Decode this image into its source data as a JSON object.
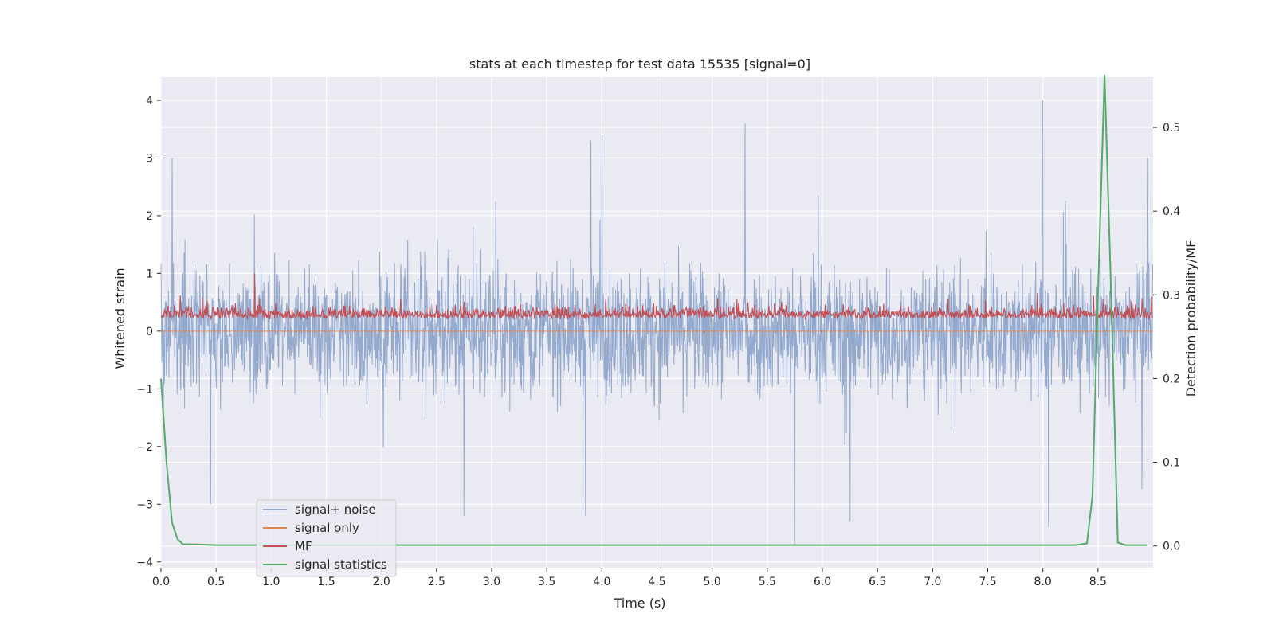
{
  "chart_data": {
    "type": "line",
    "title": "stats at each timestep for test data 15535 [signal=0]",
    "xlabel": "Time (s)",
    "ylabel": "Whitened strain",
    "y2label": "Detection probability/MF",
    "xlim": [
      0.0,
      9.0
    ],
    "ylim": [
      -4.1,
      4.4
    ],
    "y2lim": [
      -0.026,
      0.56
    ],
    "x_ticks": [
      0.0,
      0.5,
      1.0,
      1.5,
      2.0,
      2.5,
      3.0,
      3.5,
      4.0,
      4.5,
      5.0,
      5.5,
      6.0,
      6.5,
      7.0,
      7.5,
      8.0,
      8.5
    ],
    "x_tick_labels": [
      "0.0",
      "0.5",
      "1.0",
      "1.5",
      "2.0",
      "2.5",
      "3.0",
      "3.5",
      "4.0",
      "4.5",
      "5.0",
      "5.5",
      "6.0",
      "6.5",
      "7.0",
      "7.5",
      "8.0",
      "8.5"
    ],
    "y_ticks": [
      4,
      3,
      2,
      1,
      0,
      -1,
      -2,
      -3,
      -4
    ],
    "y_tick_labels": [
      "4",
      "3",
      "2",
      "1",
      "0",
      "−1",
      "−2",
      "−3",
      "−4"
    ],
    "y2_ticks": [
      0.5,
      0.4,
      0.3,
      0.2,
      0.1,
      0.0
    ],
    "y2_tick_labels": [
      "0.5",
      "0.4",
      "0.3",
      "0.2",
      "0.1",
      "0.0"
    ],
    "grid": true,
    "legend_position": "lower-left",
    "series": [
      {
        "name": "signal+ noise",
        "axis": "left",
        "color": "#4c72b0",
        "style": "dense-noise",
        "approx_range": [
          -3.7,
          4.0
        ],
        "notable_peaks": [
          [
            0.1,
            3.0
          ],
          [
            3.9,
            3.3
          ],
          [
            4.0,
            3.4
          ],
          [
            5.3,
            3.6
          ],
          [
            8.0,
            4.0
          ],
          [
            8.95,
            3.0
          ]
        ],
        "notable_troughs": [
          [
            0.45,
            -3.0
          ],
          [
            2.75,
            -3.2
          ],
          [
            3.85,
            -3.2
          ],
          [
            5.75,
            -3.7
          ],
          [
            6.25,
            -3.3
          ],
          [
            8.05,
            -3.4
          ]
        ]
      },
      {
        "name": "signal only",
        "axis": "left",
        "color": "#dd8452",
        "value": 0.0
      },
      {
        "name": "MF",
        "axis": "left",
        "color": "#c44e52",
        "style": "dense-positive-noise",
        "approx_range": [
          0.0,
          1.0
        ],
        "baseline": 0.25
      },
      {
        "name": "signal statistics",
        "axis": "right",
        "color": "#55a868",
        "x": [
          0.0,
          0.05,
          0.1,
          0.15,
          0.2,
          0.3,
          0.5,
          1.0,
          2.0,
          3.0,
          4.0,
          5.0,
          6.0,
          7.0,
          8.0,
          8.3,
          8.4,
          8.45,
          8.5,
          8.56,
          8.62,
          8.68,
          8.75,
          8.85,
          8.95
        ],
        "y": [
          0.2,
          0.1,
          0.028,
          0.008,
          0.002,
          0.002,
          0.001,
          0.001,
          0.001,
          0.001,
          0.001,
          0.001,
          0.001,
          0.001,
          0.001,
          0.001,
          0.003,
          0.06,
          0.3,
          0.563,
          0.3,
          0.004,
          0.001,
          0.001,
          0.001
        ]
      }
    ]
  }
}
